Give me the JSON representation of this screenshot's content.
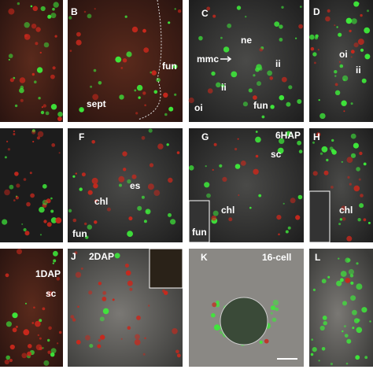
{
  "panels": [
    {
      "letter": "B",
      "labels": [
        "fun",
        "sept"
      ]
    },
    {
      "letter": "C",
      "labels": [
        "ne",
        "mmc",
        "ii",
        "ii",
        "oi",
        "fun"
      ]
    },
    {
      "letter": "D",
      "labels": [
        "oi",
        "ii"
      ]
    },
    {
      "letter": "F",
      "labels": [
        "es",
        "chl",
        "fun"
      ]
    },
    {
      "letter": "G",
      "labels": [
        "6HAP",
        "sc",
        "chl",
        "fun"
      ]
    },
    {
      "letter": "H",
      "labels": [
        "chl"
      ]
    },
    {
      "labels": [
        "1DAP",
        "sc"
      ]
    },
    {
      "letter": "J",
      "labels": [
        "2DAP"
      ]
    },
    {
      "letter": "K",
      "labels": [
        "16-cell"
      ]
    },
    {
      "letter": "L",
      "labels": []
    }
  ]
}
